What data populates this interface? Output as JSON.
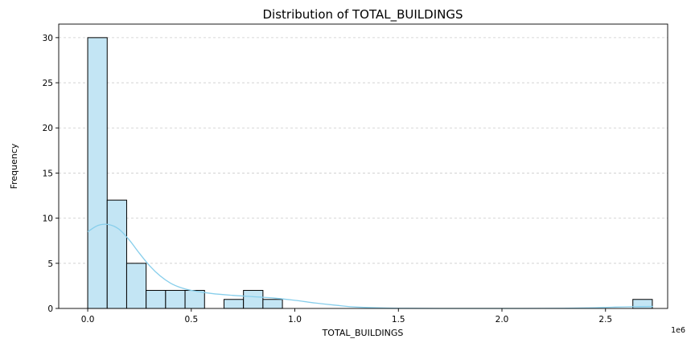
{
  "chart_data": {
    "type": "bar",
    "title": "Distribution of TOTAL_BUILDINGS",
    "xlabel": "TOTAL_BUILDINGS",
    "ylabel": "Frequency",
    "x_offset_label": "1e6",
    "xlim": [
      -0.14,
      2.8
    ],
    "ylim": [
      0,
      31.5
    ],
    "x_scale_factor": 1000000,
    "xticks": [
      0.0,
      0.5,
      1.0,
      1.5,
      2.0,
      2.5
    ],
    "xtick_labels": [
      "0.0",
      "0.5",
      "1.0",
      "1.5",
      "2.0",
      "2.5"
    ],
    "yticks": [
      0,
      5,
      10,
      15,
      20,
      25,
      30
    ],
    "ytick_labels": [
      "0",
      "5",
      "10",
      "15",
      "20",
      "25",
      "30"
    ],
    "grid": "y-dashed",
    "bin_edges": [
      0.0,
      0.094,
      0.188,
      0.282,
      0.376,
      0.47,
      0.564,
      0.658,
      0.752,
      0.846,
      0.94,
      2.632,
      2.726
    ],
    "bins": [
      {
        "x0": 0.0,
        "x1": 0.094,
        "count": 30
      },
      {
        "x0": 0.094,
        "x1": 0.188,
        "count": 12
      },
      {
        "x0": 0.188,
        "x1": 0.282,
        "count": 5
      },
      {
        "x0": 0.282,
        "x1": 0.376,
        "count": 2
      },
      {
        "x0": 0.376,
        "x1": 0.47,
        "count": 2
      },
      {
        "x0": 0.47,
        "x1": 0.564,
        "count": 2
      },
      {
        "x0": 0.658,
        "x1": 0.752,
        "count": 1
      },
      {
        "x0": 0.752,
        "x1": 0.846,
        "count": 2
      },
      {
        "x0": 0.846,
        "x1": 0.94,
        "count": 1
      },
      {
        "x0": 2.632,
        "x1": 2.726,
        "count": 1
      }
    ],
    "kde": {
      "x": [
        0.0,
        0.05,
        0.1,
        0.15,
        0.2,
        0.25,
        0.3,
        0.35,
        0.4,
        0.45,
        0.5,
        0.6,
        0.7,
        0.8,
        0.9,
        1.0,
        1.1,
        1.2,
        1.3,
        1.5,
        1.8,
        2.1,
        2.3,
        2.45,
        2.55,
        2.65,
        2.73
      ],
      "y": [
        8.5,
        9.2,
        9.3,
        8.8,
        7.6,
        6.1,
        4.7,
        3.6,
        2.8,
        2.3,
        2.0,
        1.65,
        1.45,
        1.3,
        1.15,
        0.9,
        0.6,
        0.35,
        0.15,
        0.02,
        0.0,
        0.0,
        0.02,
        0.08,
        0.15,
        0.2,
        0.22
      ]
    },
    "colors": {
      "bar_fill": "#c3e5f4",
      "bar_edge": "#000000",
      "kde_line": "#87ceeb",
      "grid": "#cccccc"
    }
  }
}
